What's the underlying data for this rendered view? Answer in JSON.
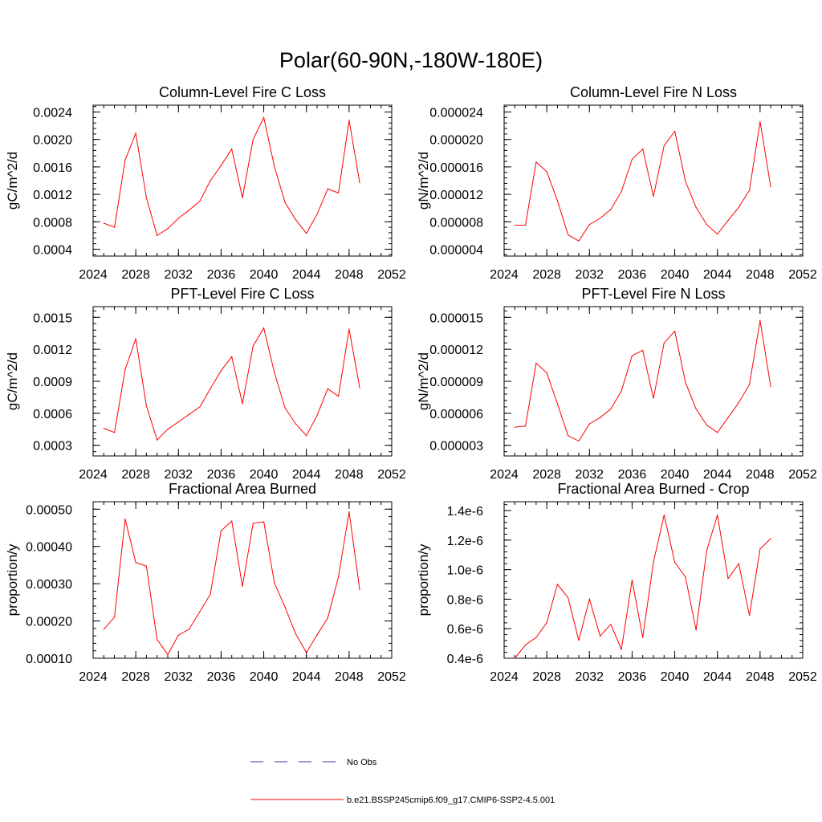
{
  "page": {
    "title": "Polar(60-90N,-180W-180E)"
  },
  "legend": {
    "items": [
      {
        "label": "No Obs",
        "color": "#3c3cb4",
        "dash": true
      },
      {
        "label": "b.e21.BSSP245cmip6.f09_g17.CMIP6-SSP2-4.5.001",
        "color": "#ff0000",
        "dash": false
      }
    ]
  },
  "chart_data": [
    {
      "type": "line",
      "title": "Column-Level Fire C Loss",
      "ylabel": "gC/m^2/d",
      "xlim": [
        2024,
        2052
      ],
      "ylim": [
        0.0003,
        0.0025
      ],
      "x_ticks": [
        "2024",
        "2028",
        "2032",
        "2036",
        "2040",
        "2044",
        "2048",
        "2052"
      ],
      "y_ticks": [
        "0.0004",
        "0.0008",
        "0.0012",
        "0.0016",
        "0.0020",
        "0.0024"
      ],
      "y_tick_values": [
        0.0004,
        0.0008,
        0.0012,
        0.0016,
        0.002,
        0.0024
      ],
      "x": [
        2025,
        2026,
        2027,
        2028,
        2029,
        2030,
        2031,
        2032,
        2033,
        2034,
        2035,
        2036,
        2037,
        2038,
        2039,
        2040,
        2041,
        2042,
        2043,
        2044,
        2045,
        2046,
        2047,
        2048,
        2049
      ],
      "series": [
        {
          "name": "b.e21.BSSP245cmip6.f09_g17.CMIP6-SSP2-4.5.001",
          "color": "#ff0000",
          "values": [
            0.00078,
            0.00072,
            0.0017,
            0.00209,
            0.00115,
            0.0006,
            0.0007,
            0.00085,
            0.00097,
            0.0011,
            0.0014,
            0.00162,
            0.00186,
            0.00115,
            0.002,
            0.00232,
            0.0016,
            0.00108,
            0.00083,
            0.00063,
            0.00091,
            0.00128,
            0.00122,
            0.00228,
            0.00137
          ]
        }
      ]
    },
    {
      "type": "line",
      "title": "Column-Level Fire N Loss",
      "ylabel": "gN/m^2/d",
      "xlim": [
        2024,
        2052
      ],
      "ylim": [
        3e-06,
        2.5e-05
      ],
      "x_ticks": [
        "2024",
        "2028",
        "2032",
        "2036",
        "2040",
        "2044",
        "2048",
        "2052"
      ],
      "y_ticks": [
        "0.000004",
        "0.000008",
        "0.000012",
        "0.000016",
        "0.000020",
        "0.000024"
      ],
      "y_tick_values": [
        4e-06,
        8e-06,
        1.2e-05,
        1.6e-05,
        2e-05,
        2.4e-05
      ],
      "x": [
        2025,
        2026,
        2027,
        2028,
        2029,
        2030,
        2031,
        2032,
        2033,
        2034,
        2035,
        2036,
        2037,
        2038,
        2039,
        2040,
        2041,
        2042,
        2043,
        2044,
        2045,
        2046,
        2047,
        2048,
        2049
      ],
      "series": [
        {
          "name": "b.e21.BSSP245cmip6.f09_g17.CMIP6-SSP2-4.5.001",
          "color": "#ff0000",
          "values": [
            7.5e-06,
            7.5e-06,
            1.67e-05,
            1.53e-05,
            1.11e-05,
            6.1e-06,
            5.2e-06,
            7.6e-06,
            8.5e-06,
            9.8e-06,
            1.24e-05,
            1.71e-05,
            1.86e-05,
            1.17e-05,
            1.91e-05,
            2.12e-05,
            1.39e-05,
            1.01e-05,
            7.6e-06,
            6.2e-06,
            8.2e-06,
            1.01e-05,
            1.26e-05,
            2.26e-05,
            1.31e-05
          ]
        }
      ]
    },
    {
      "type": "line",
      "title": "PFT-Level Fire C Loss",
      "ylabel": "gC/m^2/d",
      "xlim": [
        2024,
        2052
      ],
      "ylim": [
        0.0002,
        0.0016
      ],
      "x_ticks": [
        "2024",
        "2028",
        "2032",
        "2036",
        "2040",
        "2044",
        "2048",
        "2052"
      ],
      "y_ticks": [
        "0.0003",
        "0.0006",
        "0.0009",
        "0.0012",
        "0.0015"
      ],
      "y_tick_values": [
        0.0003,
        0.0006,
        0.0009,
        0.0012,
        0.0015
      ],
      "x": [
        2025,
        2026,
        2027,
        2028,
        2029,
        2030,
        2031,
        2032,
        2033,
        2034,
        2035,
        2036,
        2037,
        2038,
        2039,
        2040,
        2041,
        2042,
        2043,
        2044,
        2045,
        2046,
        2047,
        2048,
        2049
      ],
      "series": [
        {
          "name": "b.e21.BSSP245cmip6.f09_g17.CMIP6-SSP2-4.5.001",
          "color": "#ff0000",
          "values": [
            0.00046,
            0.00042,
            0.00101,
            0.0013,
            0.00067,
            0.00035,
            0.00045,
            0.00052,
            0.00059,
            0.00066,
            0.00083,
            0.001,
            0.00113,
            0.00069,
            0.00123,
            0.0014,
            0.00098,
            0.00065,
            0.0005,
            0.00039,
            0.00058,
            0.00083,
            0.00076,
            0.00139,
            0.00084
          ]
        }
      ]
    },
    {
      "type": "line",
      "title": "PFT-Level Fire N Loss",
      "ylabel": "gN/m^2/d",
      "xlim": [
        2024,
        2052
      ],
      "ylim": [
        2e-06,
        1.6e-05
      ],
      "x_ticks": [
        "2024",
        "2028",
        "2032",
        "2036",
        "2040",
        "2044",
        "2048",
        "2052"
      ],
      "y_ticks": [
        "0.000003",
        "0.000006",
        "0.000009",
        "0.000012",
        "0.000015"
      ],
      "y_tick_values": [
        3e-06,
        6e-06,
        9e-06,
        1.2e-05,
        1.5e-05
      ],
      "x": [
        2025,
        2026,
        2027,
        2028,
        2029,
        2030,
        2031,
        2032,
        2033,
        2034,
        2035,
        2036,
        2037,
        2038,
        2039,
        2040,
        2041,
        2042,
        2043,
        2044,
        2045,
        2046,
        2047,
        2048,
        2049
      ],
      "series": [
        {
          "name": "b.e21.BSSP245cmip6.f09_g17.CMIP6-SSP2-4.5.001",
          "color": "#ff0000",
          "values": [
            4.7e-06,
            4.8e-06,
            1.07e-05,
            9.8e-06,
            6.9e-06,
            3.9e-06,
            3.4e-06,
            5e-06,
            5.6e-06,
            6.4e-06,
            8.1e-06,
            1.14e-05,
            1.19e-05,
            7.4e-06,
            1.26e-05,
            1.37e-05,
            8.9e-06,
            6.4e-06,
            4.9e-06,
            4.2e-06,
            5.6e-06,
            7e-06,
            8.7e-06,
            1.47e-05,
            8.5e-06
          ]
        }
      ]
    },
    {
      "type": "line",
      "title": "Fractional Area Burned",
      "ylabel": "proportion/y",
      "xlim": [
        2024,
        2052
      ],
      "ylim": [
        0.0001,
        0.00052
      ],
      "x_ticks": [
        "2024",
        "2028",
        "2032",
        "2036",
        "2040",
        "2044",
        "2048",
        "2052"
      ],
      "y_ticks": [
        "0.00010",
        "0.00020",
        "0.00030",
        "0.00040",
        "0.00050"
      ],
      "y_tick_values": [
        0.0001,
        0.0002,
        0.0003,
        0.0004,
        0.0005
      ],
      "x": [
        2025,
        2026,
        2027,
        2028,
        2029,
        2030,
        2031,
        2032,
        2033,
        2034,
        2035,
        2036,
        2037,
        2038,
        2039,
        2040,
        2041,
        2042,
        2043,
        2044,
        2045,
        2046,
        2047,
        2048,
        2049
      ],
      "series": [
        {
          "name": "b.e21.BSSP245cmip6.f09_g17.CMIP6-SSP2-4.5.001",
          "color": "#ff0000",
          "values": [
            0.000178,
            0.00021,
            0.000474,
            0.000357,
            0.000347,
            0.00015,
            0.00011,
            0.000162,
            0.000178,
            0.000225,
            0.000272,
            0.000442,
            0.000468,
            0.000293,
            0.000462,
            0.000466,
            0.000302,
            0.000237,
            0.000165,
            0.000115,
            0.000163,
            0.000208,
            0.000318,
            0.000493,
            0.000284
          ]
        }
      ]
    },
    {
      "type": "line",
      "title": "Fractional Area Burned - Crop",
      "ylabel": "proportion/y",
      "xlim": [
        2024,
        2052
      ],
      "ylim": [
        4e-07,
        1.46e-06
      ],
      "x_ticks": [
        "2024",
        "2028",
        "2032",
        "2036",
        "2040",
        "2044",
        "2048",
        "2052"
      ],
      "y_ticks": [
        "0.4e-6",
        "0.6e-6",
        "0.8e-6",
        "1.0e-6",
        "1.2e-6",
        "1.4e-6"
      ],
      "y_tick_values": [
        4e-07,
        6e-07,
        8e-07,
        1e-06,
        1.2e-06,
        1.4e-06
      ],
      "x": [
        2025,
        2026,
        2027,
        2028,
        2029,
        2030,
        2031,
        2032,
        2033,
        2034,
        2035,
        2036,
        2037,
        2038,
        2039,
        2040,
        2041,
        2042,
        2043,
        2044,
        2045,
        2046,
        2047,
        2048,
        2049
      ],
      "series": [
        {
          "name": "b.e21.BSSP245cmip6.f09_g17.CMIP6-SSP2-4.5.001",
          "color": "#ff0000",
          "values": [
            4e-07,
            4.9e-07,
            5.4e-07,
            6.4e-07,
            9e-07,
            8.1e-07,
            5.2e-07,
            8e-07,
            5.5e-07,
            6.3e-07,
            4.6e-07,
            9.3e-07,
            5.4e-07,
            1.05e-06,
            1.37e-06,
            1.05e-06,
            9.5e-07,
            5.9e-07,
            1.13e-06,
            1.37e-06,
            9.4e-07,
            1.04e-06,
            6.9e-07,
            1.14e-06,
            1.21e-06
          ]
        }
      ]
    }
  ]
}
